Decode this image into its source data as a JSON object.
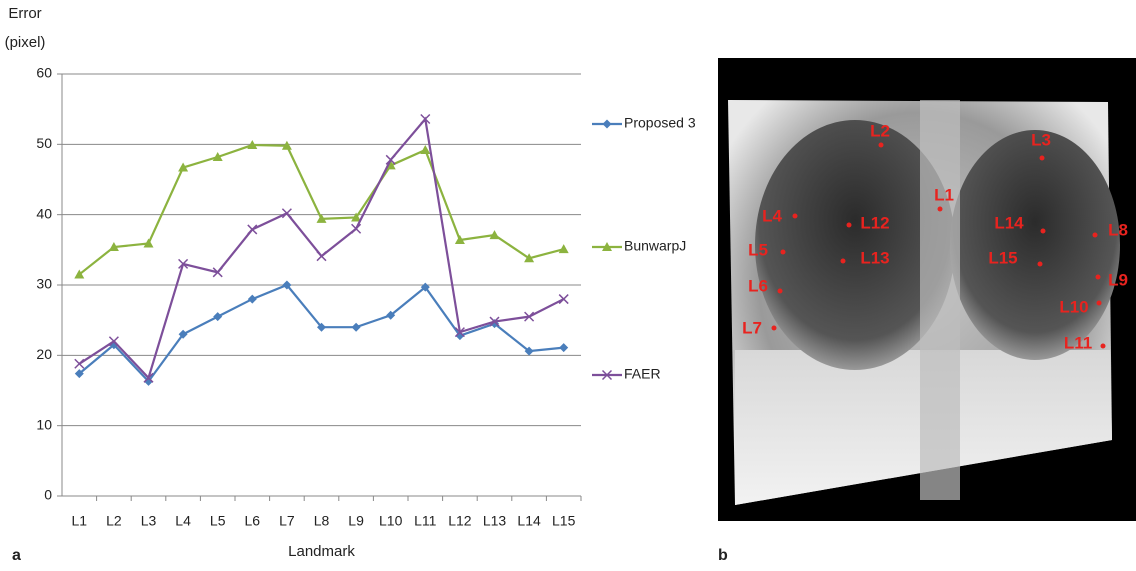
{
  "chart_data": {
    "type": "line",
    "ylabel_lines": [
      "Error",
      "(pixel)"
    ],
    "xlabel": "Landmark",
    "categories": [
      "L1",
      "L2",
      "L3",
      "L4",
      "L5",
      "L6",
      "L7",
      "L8",
      "L9",
      "L10",
      "L11",
      "L12",
      "L13",
      "L14",
      "L15"
    ],
    "series": [
      {
        "name": "Proposed 3",
        "color": "#4a7ebb",
        "marker": "diamond",
        "values": [
          17.4,
          21.5,
          16.3,
          23,
          25.5,
          28,
          30,
          24,
          24,
          25.7,
          29.7,
          22.8,
          24.5,
          20.6,
          21.1
        ]
      },
      {
        "name": "BunwarpJ",
        "color": "#8cb33f",
        "marker": "triangle",
        "values": [
          31.5,
          35.4,
          35.9,
          46.7,
          48.2,
          49.9,
          49.8,
          39.4,
          39.6,
          47,
          49.2,
          36.4,
          37.1,
          33.8,
          35.1
        ]
      },
      {
        "name": "FAER",
        "color": "#7d4f9a",
        "marker": "x",
        "values": [
          18.8,
          22,
          16.8,
          33,
          31.8,
          37.9,
          40.2,
          34.1,
          38,
          47.8,
          53.6,
          23.3,
          24.8,
          25.5,
          28
        ]
      }
    ],
    "ylim": [
      0,
      60
    ],
    "yticks": [
      0,
      10,
      20,
      30,
      40,
      50,
      60
    ],
    "grid": true,
    "panel_label": "a"
  },
  "figure": {
    "panel_label": "b",
    "landmarks": [
      "L1",
      "L2",
      "L3",
      "L4",
      "L5",
      "L6",
      "L7",
      "L8",
      "L9",
      "L10",
      "L11",
      "L12",
      "L13",
      "L14",
      "L15"
    ]
  }
}
